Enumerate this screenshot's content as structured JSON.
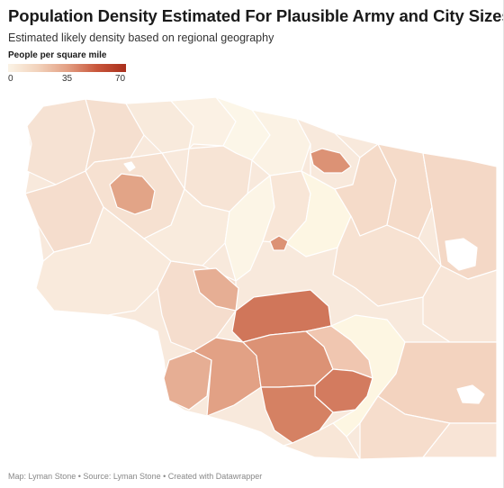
{
  "title": "Population Density Estimated For Plausible Army and City Sizes",
  "subtitle": "Estimated likely density based on regional geography",
  "legend": {
    "title": "People per square mile",
    "ticks": [
      "0",
      "35",
      "70"
    ]
  },
  "colors": {
    "scale_low": "#fbf3e6",
    "scale_mid": "#e3a084",
    "scale_high": "#a92f1c",
    "region_border": "#ffffff"
  },
  "footer": {
    "credit": "Map: Lyman Stone • Source: Lyman Stone • Created with Datawrapper"
  }
}
